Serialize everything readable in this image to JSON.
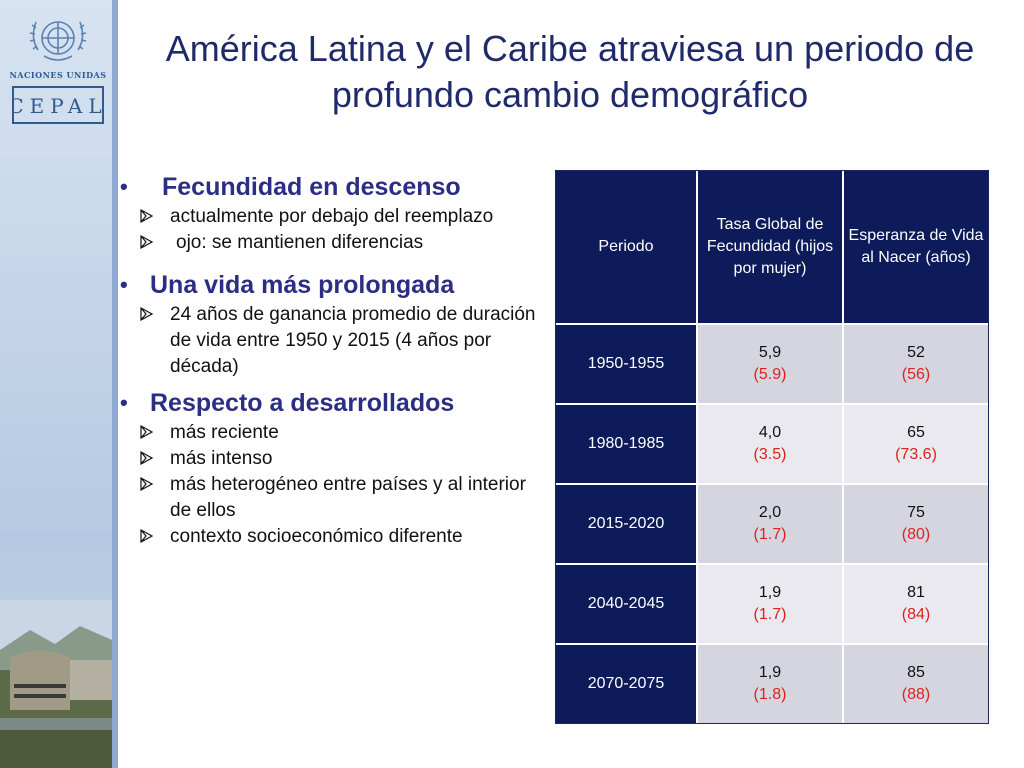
{
  "header": {
    "title": "América Latina y el Caribe atraviesa un periodo de profundo cambio demográfico"
  },
  "logos": {
    "un_label": "NACIONES UNIDAS",
    "cepal_label": "CEPAL"
  },
  "bullets": [
    {
      "heading": "Fecundidad en descenso",
      "items": [
        "actualmente por debajo del reemplazo",
        "ojo: se mantienen diferencias"
      ]
    },
    {
      "heading": "Una vida más prolongada",
      "items": [
        "24 años de ganancia promedio de duración de vida entre 1950 y 2015 (4 años por década)"
      ]
    },
    {
      "heading": "Respecto a desarrollados",
      "items": [
        "más reciente",
        "más intenso",
        "más heterogéneo entre países y al interior de ellos",
        "contexto socioeconómico diferente"
      ]
    }
  ],
  "table": {
    "headers": [
      "Periodo",
      "Tasa Global de Fecundidad (hijos por mujer)",
      "Esperanza de Vida al Nacer (años)"
    ],
    "rows": [
      {
        "period": "1950-1955",
        "tgf": "5,9",
        "tgf_paren": "(5.9)",
        "ev": "52",
        "ev_paren": "(56)"
      },
      {
        "period": "1980-1985",
        "tgf": "4,0",
        "tgf_paren": "(3.5)",
        "ev": "65",
        "ev_paren": "(73.6)"
      },
      {
        "period": "2015-2020",
        "tgf": "2,0",
        "tgf_paren": "(1.7)",
        "ev": "75",
        "ev_paren": "(80)"
      },
      {
        "period": "2040-2045",
        "tgf": "1,9",
        "tgf_paren": "(1.7)",
        "ev": "81",
        "ev_paren": "(84)"
      },
      {
        "period": "2070-2075",
        "tgf": "1,9",
        "tgf_paren": "(1.8)",
        "ev": "85",
        "ev_paren": "(88)"
      }
    ]
  },
  "colors": {
    "title": "#1f2a6b",
    "heading": "#2b2e84",
    "table_dark": "#0e1b5a",
    "paren_red": "#d9241c"
  }
}
